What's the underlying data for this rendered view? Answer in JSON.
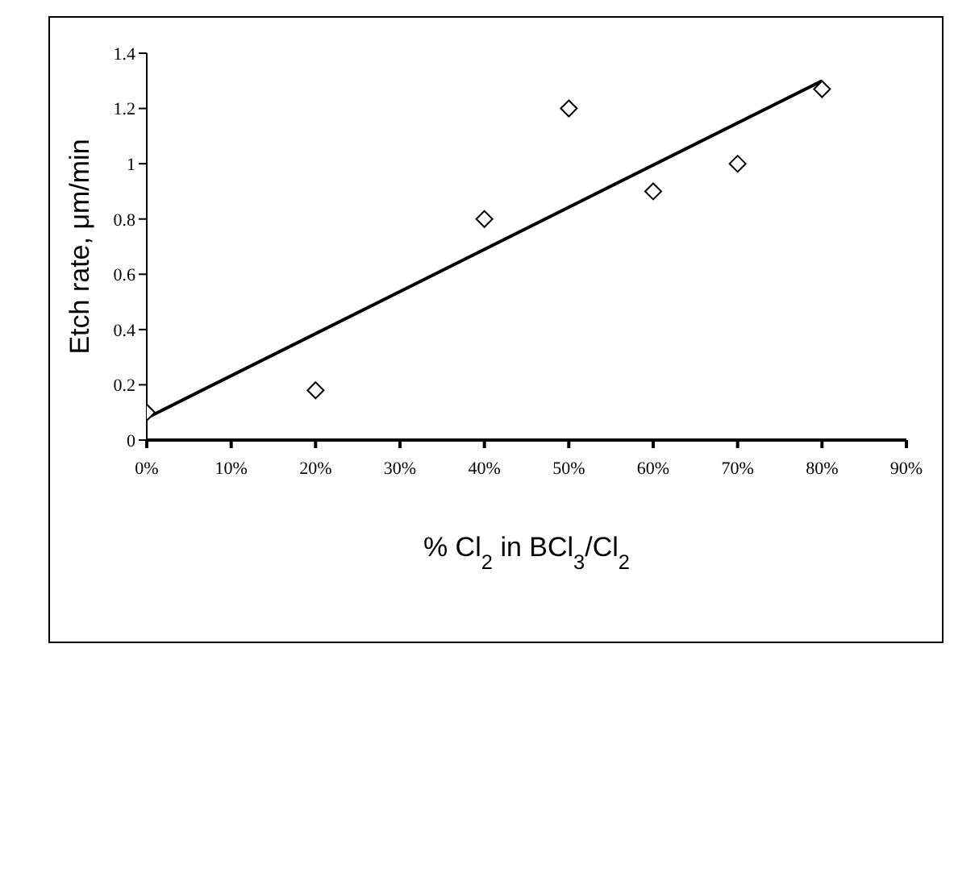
{
  "chart_data": {
    "type": "scatter",
    "xlabel": "% Cl$_{2}$ in BCl$_{3}$/Cl$_{2}$",
    "ylabel": "Etch rate, μm/min",
    "xlim": [
      0,
      90
    ],
    "xticks": [
      {
        "value": 0,
        "label": "0%"
      },
      {
        "value": 10,
        "label": "10%"
      },
      {
        "value": 20,
        "label": "20%"
      },
      {
        "value": 30,
        "label": "30%"
      },
      {
        "value": 40,
        "label": "40%"
      },
      {
        "value": 50,
        "label": "50%"
      },
      {
        "value": 60,
        "label": "60%"
      },
      {
        "value": 70,
        "label": "70%"
      },
      {
        "value": 80,
        "label": "80%"
      },
      {
        "value": 90,
        "label": "90%"
      }
    ],
    "ylim": [
      0,
      1.4
    ],
    "yticks": [
      0,
      0.2,
      0.4,
      0.6,
      0.8,
      1,
      1.2,
      1.4
    ],
    "grid": false,
    "legend": false,
    "series": [
      {
        "marker": "diamond",
        "color": "#000000",
        "x": [
          0,
          20,
          40,
          50,
          60,
          70,
          80
        ],
        "values": [
          0.1,
          0.18,
          0.8,
          1.2,
          0.9,
          1.0,
          1.27
        ]
      },
      {
        "type": "line",
        "marker": "none",
        "line_style": "solid",
        "color": "#000000",
        "x": [
          0,
          80
        ],
        "values": [
          0.08,
          1.3
        ]
      }
    ]
  }
}
